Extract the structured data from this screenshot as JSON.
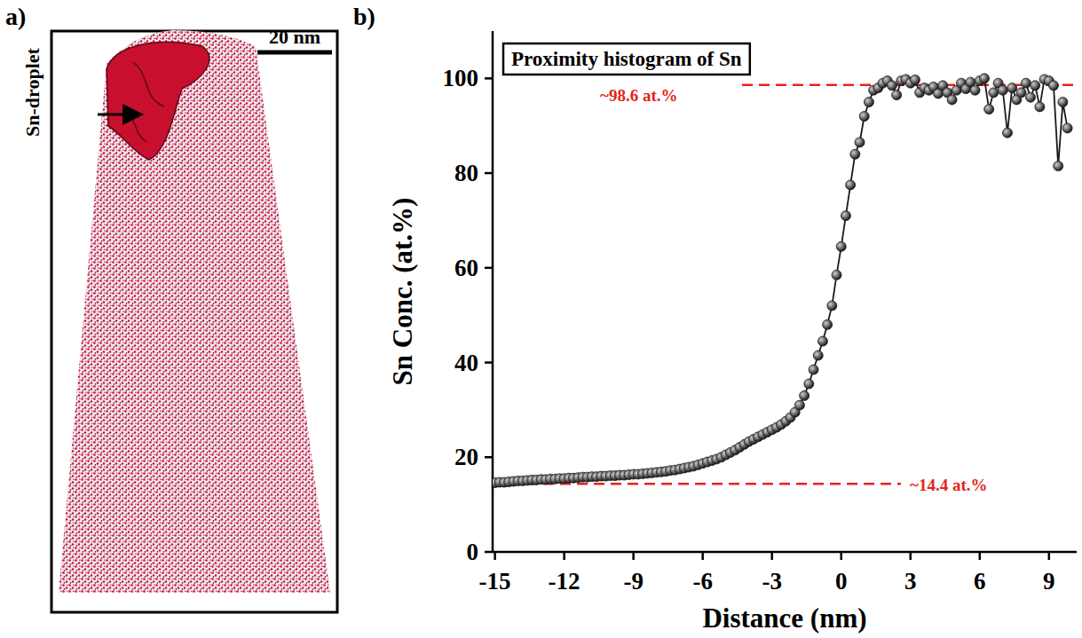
{
  "panel_a": {
    "letter": "a)",
    "label": "Sn-droplet",
    "scale_bar": "20 nm"
  },
  "chart_data": {
    "type": "line",
    "letter": "b)",
    "title": "Proximity histogram of Sn",
    "x_label": "Distance (nm)",
    "y_label": "Sn Conc. (at.%)",
    "color": "#1a1a1a",
    "marker": "circle",
    "line_style": "solid",
    "xlim": [
      -15.1,
      10.2
    ],
    "ylim": [
      0,
      110
    ],
    "xticks": [
      -15,
      -12,
      -9,
      -6,
      -3,
      0,
      3,
      6,
      9
    ],
    "yticks": [
      0,
      20,
      40,
      60,
      80,
      100
    ],
    "grid": false,
    "x": [
      -15,
      -14.8,
      -14.6,
      -14.4,
      -14.2,
      -14,
      -13.8,
      -13.6,
      -13.4,
      -13.2,
      -13,
      -12.8,
      -12.6,
      -12.4,
      -12.2,
      -12,
      -11.8,
      -11.6,
      -11.4,
      -11.2,
      -11,
      -10.8,
      -10.6,
      -10.4,
      -10.2,
      -10,
      -9.8,
      -9.6,
      -9.4,
      -9.2,
      -9,
      -8.8,
      -8.6,
      -8.4,
      -8.2,
      -8,
      -7.8,
      -7.6,
      -7.4,
      -7.2,
      -7,
      -6.8,
      -6.6,
      -6.4,
      -6.2,
      -6,
      -5.8,
      -5.6,
      -5.4,
      -5.2,
      -5,
      -4.8,
      -4.6,
      -4.4,
      -4.2,
      -4,
      -3.8,
      -3.6,
      -3.4,
      -3.2,
      -3,
      -2.8,
      -2.6,
      -2.4,
      -2.2,
      -2,
      -1.8,
      -1.6,
      -1.4,
      -1.2,
      -1,
      -0.8,
      -0.6,
      -0.4,
      -0.2,
      0,
      0.2,
      0.4,
      0.6,
      0.8,
      1,
      1.2,
      1.4,
      1.6,
      1.8,
      2,
      2.2,
      2.4,
      2.6,
      2.8,
      3,
      3.2,
      3.4,
      3.6,
      3.8,
      4,
      4.2,
      4.4,
      4.6,
      4.8,
      5,
      5.2,
      5.4,
      5.6,
      5.8,
      6,
      6.2,
      6.4,
      6.6,
      6.8,
      7,
      7.2,
      7.4,
      7.6,
      7.8,
      8,
      8.2,
      8.4,
      8.6,
      8.8,
      9,
      9.2,
      9.4,
      9.6,
      9.8
    ],
    "values": [
      14.6,
      14.7,
      14.7,
      14.8,
      14.9,
      15.0,
      15.0,
      15.1,
      15.2,
      15.2,
      15.3,
      15.3,
      15.4,
      15.4,
      15.5,
      15.5,
      15.6,
      15.6,
      15.7,
      15.8,
      15.8,
      15.9,
      15.9,
      16.0,
      16.0,
      16.1,
      16.1,
      16.2,
      16.2,
      16.3,
      16.4,
      16.4,
      16.5,
      16.6,
      16.7,
      16.8,
      16.9,
      17.0,
      17.2,
      17.3,
      17.5,
      17.7,
      17.9,
      18.1,
      18.4,
      18.7,
      19.0,
      19.3,
      19.6,
      20.0,
      20.5,
      21.0,
      21.5,
      22.1,
      22.7,
      23.3,
      23.8,
      24.3,
      24.8,
      25.3,
      25.8,
      26.3,
      26.9,
      27.6,
      28.4,
      29.5,
      31.0,
      33.0,
      35.5,
      38.5,
      41.5,
      44.5,
      48.0,
      52.0,
      58.5,
      64.5,
      71.0,
      77.5,
      84.0,
      86.5,
      92.0,
      95.0,
      97.5,
      98.0,
      99.0,
      99.5,
      98.5,
      96.5,
      99.5,
      99.8,
      99.0,
      99.7,
      97.0,
      98.0,
      97.5,
      98.2,
      96.8,
      98.5,
      97.0,
      95.5,
      97.5,
      99.0,
      97.8,
      99.2,
      97.5,
      99.5,
      100.0,
      93.5,
      97.0,
      99.0,
      97.5,
      88.5,
      98.0,
      95.5,
      97.0,
      99.0,
      96.0,
      98.5,
      94.0,
      99.8,
      99.5,
      98.5,
      81.5,
      95.0,
      89.5
    ],
    "annotations": [
      {
        "text": "~98.6 at.%",
        "value": 98.6,
        "color": "#e3241b",
        "line_style": "dashed"
      },
      {
        "text": "~14.4 at.%",
        "value": 14.4,
        "color": "#e3241b",
        "line_style": "dashed"
      }
    ]
  }
}
